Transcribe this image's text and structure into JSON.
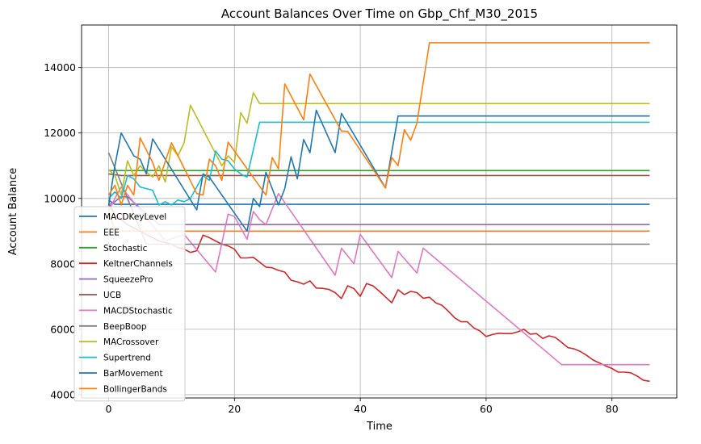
{
  "chart_data": {
    "type": "line",
    "title": "Account Balances Over Time on Gbp_Chf_M30_2015",
    "xlabel": "Time",
    "ylabel": "Account Balance",
    "xlim": [
      -4.3,
      90.3
    ],
    "ylim": [
      3900,
      15300
    ],
    "xticks": [
      0,
      20,
      40,
      60,
      80
    ],
    "yticks": [
      4000,
      6000,
      8000,
      10000,
      12000,
      14000
    ],
    "grid": true,
    "legend_position": "lower-left",
    "series": [
      {
        "name": "MACDKeyLevel",
        "color": "#1f77b4",
        "points": [
          [
            0,
            9950
          ],
          [
            1,
            9820
          ],
          [
            86,
            9820
          ]
        ]
      },
      {
        "name": "EEE",
        "color": "#ff7f0e",
        "points": [
          [
            0,
            9600
          ],
          [
            1,
            9000
          ],
          [
            86,
            9000
          ]
        ]
      },
      {
        "name": "Stochastic",
        "color": "#2ca02c",
        "points": [
          [
            0,
            10850
          ],
          [
            2,
            10850
          ],
          [
            86,
            10850
          ]
        ]
      },
      {
        "name": "KeltnerChannels",
        "color": "#d62728",
        "points": [
          [
            0,
            9850
          ],
          [
            1,
            9500
          ],
          [
            2,
            9350
          ],
          [
            3,
            9200
          ],
          [
            4,
            9100
          ],
          [
            5,
            9000
          ],
          [
            6,
            8900
          ],
          [
            7,
            8800
          ],
          [
            8,
            8700
          ],
          [
            9,
            8650
          ],
          [
            10,
            8600
          ],
          [
            11,
            8500
          ],
          [
            12,
            8450
          ],
          [
            13,
            8350
          ],
          [
            14,
            8400
          ],
          [
            15,
            8880
          ],
          [
            16,
            8800
          ],
          [
            17,
            8700
          ],
          [
            18,
            8600
          ],
          [
            19,
            8550
          ],
          [
            20,
            8450
          ],
          [
            21,
            8180
          ],
          [
            22,
            8180
          ],
          [
            23,
            8200
          ],
          [
            24,
            8050
          ],
          [
            25,
            7900
          ],
          [
            26,
            7880
          ],
          [
            27,
            7800
          ],
          [
            28,
            7750
          ],
          [
            29,
            7500
          ],
          [
            30,
            7450
          ],
          [
            31,
            7380
          ],
          [
            32,
            7480
          ],
          [
            33,
            7260
          ],
          [
            34,
            7250
          ],
          [
            35,
            7220
          ],
          [
            36,
            7120
          ],
          [
            37,
            6940
          ],
          [
            38,
            7330
          ],
          [
            39,
            7240
          ],
          [
            40,
            7010
          ],
          [
            41,
            7400
          ],
          [
            42,
            7330
          ],
          [
            43,
            7170
          ],
          [
            44,
            6990
          ],
          [
            45,
            6810
          ],
          [
            46,
            7210
          ],
          [
            47,
            7060
          ],
          [
            48,
            7160
          ],
          [
            49,
            7120
          ],
          [
            50,
            6950
          ],
          [
            51,
            6980
          ],
          [
            52,
            6810
          ],
          [
            53,
            6730
          ],
          [
            54,
            6550
          ],
          [
            55,
            6350
          ],
          [
            56,
            6230
          ],
          [
            57,
            6230
          ],
          [
            58,
            6050
          ],
          [
            59,
            5950
          ],
          [
            60,
            5780
          ],
          [
            61,
            5840
          ],
          [
            62,
            5880
          ],
          [
            63,
            5870
          ],
          [
            64,
            5870
          ],
          [
            65,
            5920
          ],
          [
            66,
            6000
          ],
          [
            67,
            5850
          ],
          [
            68,
            5870
          ],
          [
            69,
            5720
          ],
          [
            70,
            5800
          ],
          [
            71,
            5750
          ],
          [
            72,
            5600
          ],
          [
            73,
            5440
          ],
          [
            74,
            5400
          ],
          [
            75,
            5320
          ],
          [
            76,
            5200
          ],
          [
            77,
            5060
          ],
          [
            78,
            4970
          ],
          [
            79,
            4880
          ],
          [
            80,
            4800
          ],
          [
            81,
            4690
          ],
          [
            82,
            4690
          ],
          [
            83,
            4670
          ],
          [
            84,
            4570
          ],
          [
            85,
            4440
          ],
          [
            86,
            4410
          ]
        ]
      },
      {
        "name": "SqueezePro",
        "color": "#9467bd",
        "points": [
          [
            0,
            9800
          ],
          [
            1,
            9900
          ],
          [
            2,
            10050
          ],
          [
            3,
            10050
          ],
          [
            8,
            9200
          ],
          [
            86,
            9200
          ]
        ]
      },
      {
        "name": "UCB",
        "color": "#8c564b",
        "points": [
          [
            0,
            10750
          ],
          [
            2,
            10700
          ],
          [
            86,
            10700
          ]
        ]
      },
      {
        "name": "MACDStochastic",
        "color": "#e377c2",
        "points": [
          [
            0,
            9600
          ],
          [
            1,
            10000
          ],
          [
            2,
            10350
          ],
          [
            9,
            8700
          ],
          [
            12,
            8900
          ],
          [
            17,
            7750
          ],
          [
            19,
            9520
          ],
          [
            20,
            9450
          ],
          [
            22,
            8750
          ],
          [
            23,
            9600
          ],
          [
            24,
            9350
          ],
          [
            25,
            9200
          ],
          [
            27,
            10150
          ],
          [
            36,
            7650
          ],
          [
            37,
            8480
          ],
          [
            39,
            8000
          ],
          [
            40,
            8900
          ],
          [
            45,
            7580
          ],
          [
            46,
            8380
          ],
          [
            49,
            7720
          ],
          [
            50,
            8480
          ],
          [
            72,
            4920
          ],
          [
            86,
            4920
          ]
        ]
      },
      {
        "name": "BeepBoop",
        "color": "#7f7f7f",
        "points": [
          [
            0,
            11400
          ],
          [
            6,
            8600
          ],
          [
            86,
            8600
          ]
        ]
      },
      {
        "name": "MACrossover",
        "color": "#bcbd22",
        "points": [
          [
            0,
            10880
          ],
          [
            1,
            10700
          ],
          [
            2,
            10100
          ],
          [
            3,
            11150
          ],
          [
            4,
            10700
          ],
          [
            5,
            11000
          ],
          [
            6,
            10800
          ],
          [
            7,
            10650
          ],
          [
            8,
            11000
          ],
          [
            9,
            10500
          ],
          [
            10,
            11580
          ],
          [
            11,
            11300
          ],
          [
            12,
            11700
          ],
          [
            13,
            12850
          ],
          [
            18,
            11000
          ],
          [
            19,
            11300
          ],
          [
            20,
            11100
          ],
          [
            21,
            12620
          ],
          [
            22,
            12300
          ],
          [
            23,
            13230
          ],
          [
            24,
            12900
          ],
          [
            86,
            12900
          ]
        ]
      },
      {
        "name": "Supertrend",
        "color": "#17becf",
        "points": [
          [
            0,
            10000
          ],
          [
            1,
            10200
          ],
          [
            2,
            10000
          ],
          [
            3,
            10700
          ],
          [
            4,
            10600
          ],
          [
            5,
            10350
          ],
          [
            6,
            10300
          ],
          [
            7,
            10250
          ],
          [
            8,
            9800
          ],
          [
            9,
            9900
          ],
          [
            10,
            9800
          ],
          [
            11,
            9950
          ],
          [
            12,
            9900
          ],
          [
            13,
            10000
          ],
          [
            15,
            10700
          ],
          [
            16,
            10550
          ],
          [
            17,
            11450
          ],
          [
            18,
            11200
          ],
          [
            19,
            11150
          ],
          [
            20,
            10900
          ],
          [
            21,
            10750
          ],
          [
            22,
            10650
          ],
          [
            24,
            12330
          ],
          [
            86,
            12330
          ]
        ]
      },
      {
        "name": "BarMovement",
        "color": "#1f77b4",
        "points": [
          [
            0,
            9780
          ],
          [
            1,
            11000
          ],
          [
            2,
            12000
          ],
          [
            3,
            11650
          ],
          [
            4,
            11300
          ],
          [
            5,
            11200
          ],
          [
            6,
            10750
          ],
          [
            7,
            11820
          ],
          [
            14,
            9650
          ],
          [
            15,
            10750
          ],
          [
            16,
            10650
          ],
          [
            22,
            9000
          ],
          [
            23,
            10000
          ],
          [
            24,
            9750
          ],
          [
            25,
            10800
          ],
          [
            27,
            9800
          ],
          [
            28,
            10300
          ],
          [
            29,
            11270
          ],
          [
            30,
            10600
          ],
          [
            31,
            11800
          ],
          [
            32,
            11400
          ],
          [
            33,
            12700
          ],
          [
            36,
            11400
          ],
          [
            37,
            12600
          ],
          [
            44,
            10320
          ],
          [
            46,
            12520
          ],
          [
            86,
            12520
          ]
        ]
      },
      {
        "name": "BollingerBands",
        "color": "#ff7f0e",
        "points": [
          [
            0,
            10100
          ],
          [
            1,
            10400
          ],
          [
            2,
            9800
          ],
          [
            3,
            10400
          ],
          [
            4,
            10100
          ],
          [
            5,
            11850
          ],
          [
            7,
            11100
          ],
          [
            8,
            10550
          ],
          [
            10,
            11700
          ],
          [
            14,
            10150
          ],
          [
            15,
            10100
          ],
          [
            16,
            11200
          ],
          [
            17,
            11000
          ],
          [
            18,
            10550
          ],
          [
            19,
            11720
          ],
          [
            25,
            10100
          ],
          [
            26,
            11250
          ],
          [
            27,
            10900
          ],
          [
            28,
            13500
          ],
          [
            31,
            12400
          ],
          [
            32,
            13800
          ],
          [
            37,
            12060
          ],
          [
            38,
            12050
          ],
          [
            44,
            10320
          ],
          [
            45,
            11250
          ],
          [
            46,
            11000
          ],
          [
            47,
            12100
          ],
          [
            48,
            11780
          ],
          [
            49,
            12300
          ],
          [
            51,
            14760
          ],
          [
            86,
            14760
          ]
        ]
      }
    ]
  }
}
